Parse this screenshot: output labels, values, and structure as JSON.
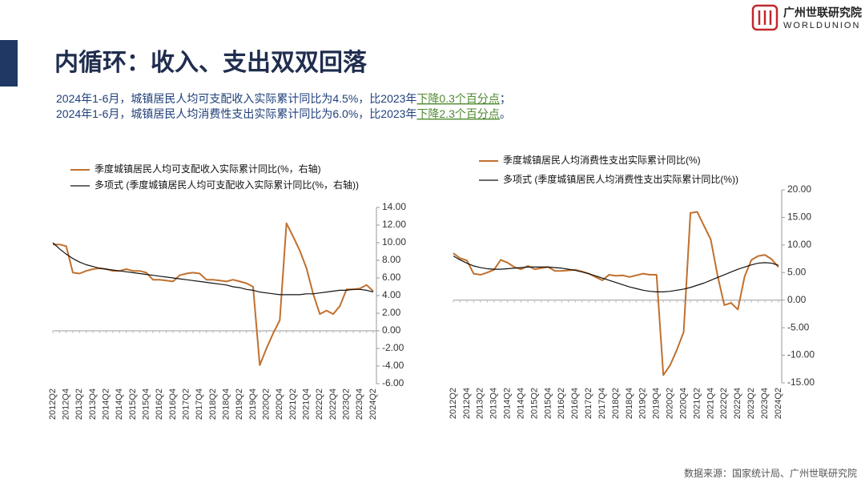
{
  "header": {
    "title": "内循环：收入、支出双双回落",
    "subtitle": [
      {
        "before": "2024年1-6月，城镇居民人均可支配收入实际累计同比为4.5%，比2023年",
        "highlight": "下降0.3个百分点",
        "after": "；"
      },
      {
        "before": "2024年1-6月，城镇居民人均消费性支出实际累计同比为6.0%，比2023年",
        "highlight": "下降2.3个百分点",
        "after": "。"
      }
    ]
  },
  "logo": {
    "name": "广州世联研究院",
    "en": "WORLDUNION"
  },
  "source": "数据来源：国家统计局、广州世联研究院",
  "chart_data": [
    {
      "type": "line",
      "categories": [
        "2012Q2",
        null,
        "2012Q4",
        null,
        "2013Q2",
        null,
        "2013Q4",
        null,
        "2014Q2",
        null,
        "2014Q4",
        null,
        "2015Q2",
        null,
        "2015Q4",
        null,
        "2016Q2",
        null,
        "2016Q4",
        null,
        "2017Q2",
        null,
        "2017Q4",
        null,
        "2018Q2",
        null,
        "2018Q4",
        null,
        "2019Q2",
        null,
        "2019Q4",
        null,
        "2020Q2",
        null,
        "2020Q4",
        null,
        "2021Q2",
        null,
        "2021Q4",
        null,
        "2022Q2",
        null,
        "2022Q4",
        null,
        "2023Q2",
        null,
        "2023Q4",
        null,
        "2024Q2"
      ],
      "series": [
        {
          "name": "季度城镇居民人均可支配收入实际累计同比(%，右轴)",
          "color": "#c0702e",
          "values": [
            9.8,
            9.8,
            9.6,
            6.6,
            6.5,
            6.8,
            7.0,
            7.1,
            7.0,
            6.8,
            6.8,
            7.0,
            6.8,
            6.8,
            6.6,
            5.8,
            5.8,
            5.7,
            5.6,
            6.3,
            6.5,
            6.6,
            6.5,
            5.8,
            5.8,
            5.7,
            5.6,
            5.8,
            5.6,
            5.4,
            5.0,
            -3.9,
            -2.0,
            -0.3,
            1.2,
            12.2,
            10.7,
            9.1,
            7.1,
            4.2,
            1.9,
            2.3,
            1.9,
            2.8,
            4.7,
            4.7,
            4.8,
            5.2,
            4.5
          ]
        },
        {
          "name": "多项式 (季度城镇居民人均可支配收入实际累计同比(%，右轴))",
          "color": "#111111",
          "values": [
            10.0,
            9.3,
            8.7,
            8.2,
            7.8,
            7.5,
            7.3,
            7.1,
            7.0,
            6.9,
            6.8,
            6.7,
            6.6,
            6.5,
            6.4,
            6.3,
            6.2,
            6.1,
            6.0,
            5.9,
            5.8,
            5.7,
            5.6,
            5.5,
            5.4,
            5.3,
            5.2,
            5.0,
            4.9,
            4.7,
            4.6,
            4.4,
            4.3,
            4.2,
            4.1,
            4.1,
            4.1,
            4.1,
            4.2,
            4.2,
            4.3,
            4.4,
            4.5,
            4.6,
            4.6,
            4.7,
            4.7,
            4.6,
            4.4
          ]
        }
      ],
      "ylim": [
        -6,
        14
      ],
      "yticks": [
        {
          "value": -6,
          "label": "-6.00"
        },
        {
          "value": -4,
          "label": "-4.00"
        },
        {
          "value": -2,
          "label": "-2.00"
        },
        {
          "value": 0,
          "label": "0.00"
        },
        {
          "value": 2,
          "label": "2.00"
        },
        {
          "value": 4,
          "label": "4.00"
        },
        {
          "value": 6,
          "label": "6.00"
        },
        {
          "value": 8,
          "label": "8.00"
        },
        {
          "value": 10,
          "label": "10.00"
        },
        {
          "value": 12,
          "label": "12.00"
        },
        {
          "value": 14,
          "label": "14.00"
        }
      ],
      "y_axis_side": "right"
    },
    {
      "type": "line",
      "categories": [
        "2012Q2",
        null,
        "2012Q4",
        null,
        "2013Q2",
        null,
        "2013Q4",
        null,
        "2014Q2",
        null,
        "2014Q4",
        null,
        "2015Q2",
        null,
        "2015Q4",
        null,
        "2016Q2",
        null,
        "2016Q4",
        null,
        "2017Q2",
        null,
        "2017Q4",
        null,
        "2018Q2",
        null,
        "2018Q4",
        null,
        "2019Q2",
        null,
        "2019Q4",
        null,
        "2020Q2",
        null,
        "2020Q4",
        null,
        "2021Q2",
        null,
        "2021Q4",
        null,
        "2022Q2",
        null,
        "2022Q4",
        null,
        "2023Q2",
        null,
        "2023Q4",
        null,
        "2024Q2"
      ],
      "series": [
        {
          "name": "季度城镇居民人均消费性支出实际累计同比(%)",
          "color": "#c0702e",
          "values": [
            8.5,
            7.6,
            7.2,
            4.8,
            4.6,
            5.0,
            5.5,
            7.3,
            6.8,
            6.0,
            5.6,
            6.2,
            5.6,
            5.8,
            6.0,
            5.3,
            5.3,
            5.4,
            5.5,
            5.2,
            4.8,
            4.2,
            3.6,
            4.6,
            4.4,
            4.5,
            4.2,
            4.5,
            4.8,
            4.6,
            4.6,
            -13.6,
            -11.8,
            -9.0,
            -5.8,
            15.8,
            16.0,
            13.5,
            11.0,
            4.5,
            -0.9,
            -0.5,
            -1.7,
            4.3,
            7.3,
            8.0,
            8.2,
            7.4,
            6.0
          ]
        },
        {
          "name": "多项式 (季度城镇居民人均消费性支出实际累计同比(%))",
          "color": "#111111",
          "values": [
            8.0,
            7.3,
            6.7,
            6.2,
            5.9,
            5.7,
            5.6,
            5.6,
            5.7,
            5.8,
            5.9,
            6.0,
            6.0,
            6.0,
            6.0,
            5.9,
            5.8,
            5.6,
            5.4,
            5.1,
            4.8,
            4.4,
            4.0,
            3.6,
            3.2,
            2.8,
            2.4,
            2.1,
            1.8,
            1.6,
            1.5,
            1.5,
            1.6,
            1.8,
            2.0,
            2.3,
            2.7,
            3.1,
            3.6,
            4.1,
            4.6,
            5.1,
            5.6,
            6.0,
            6.4,
            6.7,
            6.8,
            6.7,
            6.3
          ]
        }
      ],
      "ylim": [
        -15,
        20
      ],
      "yticks": [
        {
          "value": -15,
          "label": "-15.00"
        },
        {
          "value": -10,
          "label": "-10.00"
        },
        {
          "value": -5,
          "label": "-5.00"
        },
        {
          "value": 0,
          "label": "0.00"
        },
        {
          "value": 5,
          "label": "5.00"
        },
        {
          "value": 10,
          "label": "10.00"
        },
        {
          "value": 15,
          "label": "15.00"
        },
        {
          "value": 20,
          "label": "20.00"
        }
      ],
      "y_axis_side": "right"
    }
  ]
}
